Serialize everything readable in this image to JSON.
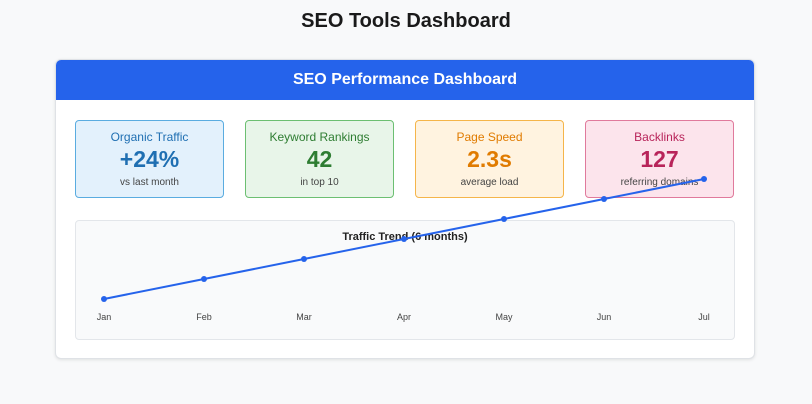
{
  "page": {
    "title": "SEO Tools Dashboard"
  },
  "dashboard": {
    "title": "SEO Performance Dashboard",
    "header_color": "#2563eb"
  },
  "metrics": [
    {
      "label": "Organic Traffic",
      "value": "+24%",
      "sub": "vs last month",
      "accent": "#1f6fb2",
      "bg": "#e3f1fc",
      "border": "#5aace0"
    },
    {
      "label": "Keyword Rankings",
      "value": "42",
      "sub": "in top 10",
      "accent": "#2e7d32",
      "bg": "#e8f5e9",
      "border": "#6cbf72"
    },
    {
      "label": "Page Speed",
      "value": "2.3s",
      "sub": "average load",
      "accent": "#e07b00",
      "bg": "#fff3e0",
      "border": "#f5b54a"
    },
    {
      "label": "Backlinks",
      "value": "127",
      "sub": "referring domains",
      "accent": "#b8245a",
      "bg": "#fce4ec",
      "border": "#e07a9c"
    }
  ],
  "chart_data": {
    "type": "line",
    "title": "Traffic Trend (6 months)",
    "categories": [
      "Jan",
      "Feb",
      "Mar",
      "Apr",
      "May",
      "Jun",
      "Jul"
    ],
    "series": [
      {
        "values": [
          0,
          1,
          2,
          3,
          4,
          5,
          6
        ],
        "color": "#2563eb"
      }
    ],
    "xlabel": "",
    "ylabel": "",
    "grid": false,
    "legend": "none"
  }
}
